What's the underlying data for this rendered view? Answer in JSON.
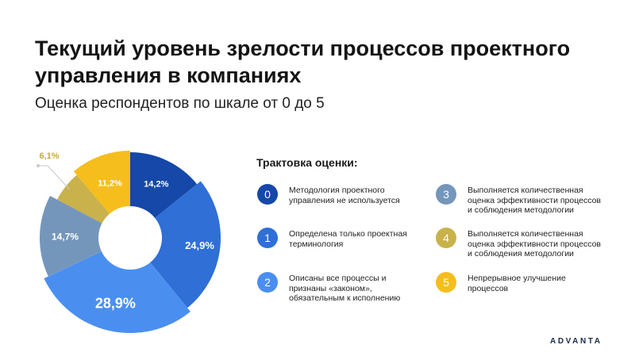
{
  "title": "Текущий уровень зрелости процессов проектного управления в компаниях",
  "subtitle": "Оценка респондентов по шкале от 0 до 5",
  "chart_data": {
    "type": "pie",
    "variant": "donut",
    "unit": "%",
    "categories": [
      "0",
      "1",
      "2",
      "3",
      "4",
      "5"
    ],
    "values": [
      14.2,
      24.9,
      28.9,
      14.7,
      6.1,
      11.2
    ],
    "labels": [
      "14,2%",
      "24,9%",
      "28,9%",
      "14,7%",
      "6,1%",
      "11,2%"
    ],
    "colors": [
      "#1548a8",
      "#2f6fd6",
      "#4a8ff0",
      "#7596bb",
      "#c9b24c",
      "#f5be1d"
    ],
    "label_colors": [
      "#ffffff",
      "#ffffff",
      "#ffffff",
      "#ffffff",
      "#c9a93a",
      "#ffffff"
    ],
    "start_angle_deg": 0,
    "direction": "clockwise"
  },
  "legend": {
    "title": "Трактовка оценки:",
    "items": [
      {
        "num": "0",
        "text": "Методология проектного управления не используется",
        "color": "#1548a8"
      },
      {
        "num": "1",
        "text": "Определена только проектная терминология",
        "color": "#2f6fd6"
      },
      {
        "num": "2",
        "text": "Описаны все процессы и признаны «законом», обязательным к исполнению",
        "color": "#4a8ff0"
      },
      {
        "num": "3",
        "text": "Выполняется количественная оценка эффективности процессов и соблюдения методологии",
        "color": "#7596bb"
      },
      {
        "num": "4",
        "text": "Выполняется количественная оценка эффективности процессов и соблюдения методологии",
        "color": "#c9b24c"
      },
      {
        "num": "5",
        "text": "Непрерывное улучшение процессов",
        "color": "#f5be1d"
      }
    ]
  },
  "logo": {
    "text": "ADVANTA"
  }
}
